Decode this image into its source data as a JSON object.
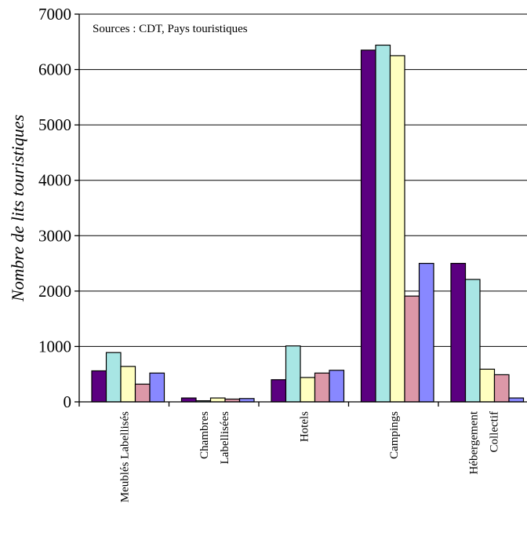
{
  "chart_data": {
    "type": "bar",
    "ylabel": "Nombre de lits touristiques",
    "annotation": "Sources : CDT, Pays touristiques",
    "ylim": [
      0,
      7000
    ],
    "yticks": [
      0,
      1000,
      2000,
      3000,
      4000,
      5000,
      6000,
      7000
    ],
    "grid": true,
    "categories": [
      [
        "Meublés Labellisés"
      ],
      [
        "Chambres",
        "Labellisées"
      ],
      [
        "Hotels"
      ],
      [
        "Campings"
      ],
      [
        "Hébergement",
        "Collectif"
      ]
    ],
    "series": [
      {
        "color": "#5b0080",
        "values": [
          560,
          70,
          400,
          6350,
          2500
        ]
      },
      {
        "color": "#a8e6e4",
        "values": [
          890,
          20,
          1010,
          6440,
          2210
        ]
      },
      {
        "color": "#ffffc0",
        "values": [
          640,
          70,
          440,
          6250,
          590
        ]
      },
      {
        "color": "#dc98a8",
        "values": [
          320,
          50,
          520,
          1910,
          490
        ]
      },
      {
        "color": "#8888ff",
        "values": [
          520,
          60,
          570,
          2500,
          70
        ]
      }
    ]
  }
}
